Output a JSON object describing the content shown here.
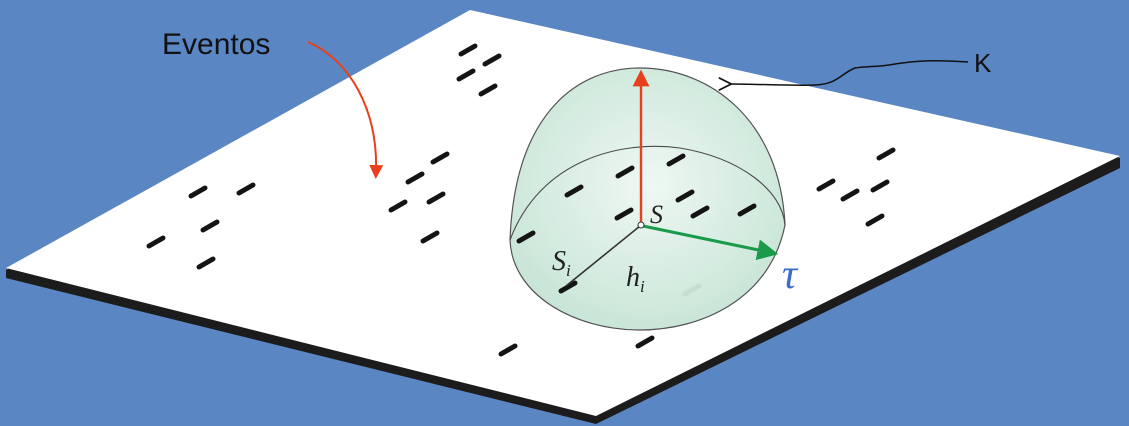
{
  "labels": {
    "events": "Eventos",
    "k": "K",
    "s": "S",
    "s_i_base": "S",
    "s_i_sub": "i",
    "h_i_base": "h",
    "h_i_sub": "i",
    "tau": "τ"
  },
  "colors": {
    "background": "#5b86c4",
    "plane": "#ffffff",
    "plane_edge": "#1c1c1c",
    "event_marks": "#141414",
    "dome_fill": "#cfe9dd",
    "dome_stroke": "#4a4a4a",
    "events_arrow": "#e8401c",
    "height_arrow": "#e8401c",
    "radius_arrow": "#1a9a4a",
    "tau_label": "#3a6fc8",
    "k_pointer": "#111111"
  }
}
